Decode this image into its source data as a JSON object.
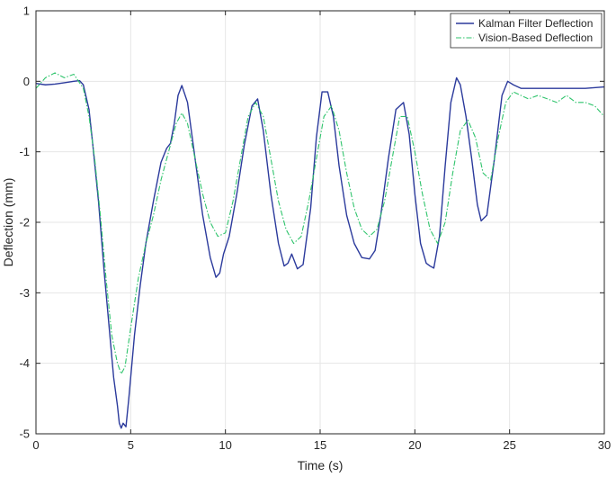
{
  "chart_data": {
    "type": "line",
    "title": "",
    "xlabel": "Time (s)",
    "ylabel": "Deflection (mm)",
    "xlim": [
      0,
      30
    ],
    "ylim": [
      -5,
      1
    ],
    "xticks": [
      0,
      5,
      10,
      15,
      20,
      25,
      30
    ],
    "yticks": [
      1,
      0,
      -1,
      -2,
      -3,
      -4,
      -5
    ],
    "xtick_labels": [
      "0",
      "5",
      "10",
      "15",
      "20",
      "25",
      "30"
    ],
    "ytick_labels": [
      "1",
      "0",
      "-1",
      "-2",
      "-3",
      "-4",
      "-5"
    ],
    "grid": true,
    "legend_position": "top-right",
    "series": [
      {
        "name": "Kalman Filter Deflection",
        "color": "#2b3a9c",
        "style": "solid",
        "x": [
          0,
          0.5,
          1.0,
          1.5,
          2.0,
          2.3,
          2.5,
          2.8,
          3.0,
          3.3,
          3.6,
          3.9,
          4.1,
          4.3,
          4.4,
          4.5,
          4.6,
          4.75,
          4.9,
          5.2,
          5.5,
          5.8,
          6.2,
          6.6,
          6.9,
          7.1,
          7.3,
          7.5,
          7.7,
          8.0,
          8.4,
          8.8,
          9.2,
          9.5,
          9.7,
          9.9,
          10.2,
          10.6,
          11.0,
          11.4,
          11.7,
          12.0,
          12.4,
          12.8,
          13.1,
          13.3,
          13.5,
          13.8,
          14.1,
          14.5,
          14.8,
          15.1,
          15.4,
          15.7,
          16.0,
          16.4,
          16.8,
          17.2,
          17.6,
          17.9,
          18.2,
          18.6,
          19.0,
          19.4,
          19.7,
          20.0,
          20.3,
          20.6,
          20.8,
          21.0,
          21.3,
          21.6,
          21.9,
          22.2,
          22.4,
          22.7,
          23.0,
          23.3,
          23.5,
          23.8,
          24.2,
          24.6,
          24.9,
          25.2,
          25.6,
          26.0,
          27.0,
          28.0,
          29.0,
          30.0
        ],
        "y": [
          -0.03,
          -0.05,
          -0.04,
          -0.02,
          0.0,
          0.01,
          -0.05,
          -0.4,
          -0.9,
          -1.7,
          -2.7,
          -3.6,
          -4.2,
          -4.6,
          -4.85,
          -4.92,
          -4.85,
          -4.9,
          -4.5,
          -3.6,
          -2.9,
          -2.3,
          -1.7,
          -1.15,
          -0.95,
          -0.88,
          -0.6,
          -0.2,
          -0.06,
          -0.3,
          -1.1,
          -1.9,
          -2.5,
          -2.78,
          -2.72,
          -2.45,
          -2.2,
          -1.6,
          -0.9,
          -0.35,
          -0.25,
          -0.7,
          -1.6,
          -2.3,
          -2.62,
          -2.58,
          -2.45,
          -2.66,
          -2.6,
          -1.8,
          -0.8,
          -0.15,
          -0.15,
          -0.5,
          -1.2,
          -1.9,
          -2.3,
          -2.5,
          -2.52,
          -2.4,
          -1.9,
          -1.1,
          -0.4,
          -0.3,
          -0.75,
          -1.6,
          -2.3,
          -2.58,
          -2.62,
          -2.65,
          -2.2,
          -1.2,
          -0.3,
          0.05,
          -0.05,
          -0.5,
          -1.1,
          -1.75,
          -1.98,
          -1.9,
          -1.1,
          -0.2,
          0.0,
          -0.05,
          -0.1,
          -0.1,
          -0.1,
          -0.1,
          -0.1,
          -0.08
        ]
      },
      {
        "name": "Vision-Based Deflection",
        "color": "#2fc46c",
        "style": "dashdot",
        "x": [
          0,
          0.5,
          1.0,
          1.5,
          2.0,
          2.5,
          2.8,
          3.1,
          3.4,
          3.7,
          4.0,
          4.3,
          4.5,
          4.7,
          5.0,
          5.4,
          5.8,
          6.2,
          6.6,
          7.0,
          7.4,
          7.7,
          8.0,
          8.4,
          8.8,
          9.2,
          9.6,
          10.0,
          10.4,
          10.8,
          11.2,
          11.6,
          12.0,
          12.4,
          12.8,
          13.2,
          13.6,
          14.0,
          14.4,
          14.8,
          15.2,
          15.6,
          16.0,
          16.4,
          16.8,
          17.2,
          17.6,
          18.0,
          18.4,
          18.8,
          19.2,
          19.6,
          20.0,
          20.4,
          20.8,
          21.2,
          21.6,
          22.0,
          22.4,
          22.8,
          23.2,
          23.6,
          24.0,
          24.4,
          24.8,
          25.2,
          25.6,
          26.0,
          26.5,
          27.0,
          27.5,
          28.0,
          28.5,
          29.0,
          29.5,
          30.0
        ],
        "y": [
          -0.1,
          0.05,
          0.12,
          0.05,
          0.1,
          -0.1,
          -0.5,
          -1.1,
          -1.9,
          -2.8,
          -3.6,
          -4.0,
          -4.15,
          -4.05,
          -3.5,
          -2.8,
          -2.3,
          -1.9,
          -1.4,
          -1.0,
          -0.6,
          -0.45,
          -0.6,
          -1.1,
          -1.6,
          -2.0,
          -2.2,
          -2.15,
          -1.7,
          -1.1,
          -0.5,
          -0.3,
          -0.5,
          -1.1,
          -1.7,
          -2.1,
          -2.3,
          -2.2,
          -1.7,
          -1.1,
          -0.5,
          -0.35,
          -0.7,
          -1.3,
          -1.8,
          -2.1,
          -2.2,
          -2.1,
          -1.7,
          -1.1,
          -0.5,
          -0.5,
          -1.0,
          -1.6,
          -2.1,
          -2.3,
          -2.0,
          -1.3,
          -0.7,
          -0.55,
          -0.8,
          -1.3,
          -1.4,
          -0.8,
          -0.3,
          -0.15,
          -0.2,
          -0.25,
          -0.2,
          -0.25,
          -0.3,
          -0.2,
          -0.3,
          -0.3,
          -0.35,
          -0.5
        ]
      }
    ]
  }
}
